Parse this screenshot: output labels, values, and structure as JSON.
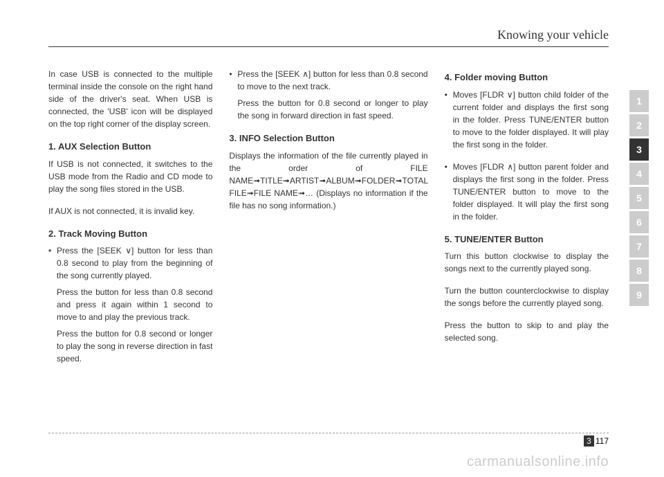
{
  "header": {
    "title": "Knowing your vehicle"
  },
  "col1": {
    "intro": "In case USB is connected to the multiple terminal inside the console on the right hand side of the driver's seat. When USB is connected, the 'USB' icon will be displayed on the top right corner of the display screen.",
    "h1": "1. AUX Selection Button",
    "p1a": "If USB is not connected, it switches to the USB mode from the Radio and CD mode to play the song files stored in the USB.",
    "p1b": "If AUX is not connected, it is invalid key.",
    "h2": "2. Track Moving Button",
    "b1a": "Press the [SEEK ∨] button for less than 0.8 second to play from the beginning of the song currently played.",
    "b1b": "Press the button for less than 0.8 second and press it again within 1 second to move to and play the previous track.",
    "b1c": "Press the button for 0.8 second or longer to play the song in reverse direction in fast speed."
  },
  "col2": {
    "b2a": "Press the [SEEK ∧] button for less than 0.8 second to move to the next track.",
    "b2b": "Press the button for 0.8 second or longer to play the song in forward direction in fast speed.",
    "h3": "3. INFO Selection Button",
    "p3": "Displays the information of the file currently played in the order of FILE NAME➟TITLE➟ARTIST➟ALBUM➟FOLDER➟TOTAL FILE➟FILE NAME➟…  (Displays no information if the file has no song information.)"
  },
  "col3": {
    "h4": "4. Folder moving Button",
    "b4a": "Moves [FLDR ∨] button child folder of the current folder and displays the first song in the folder. Press TUNE/ENTER button to move to the folder displayed. It will play the first song in the folder.",
    "b4b": "Moves [FLDR ∧] button parent folder and displays the first song in the folder. Press TUNE/ENTER button to move to the folder displayed. It will play the first song in the folder.",
    "h5": "5. TUNE/ENTER Button",
    "p5a": "Turn this button clockwise to display the songs next to the currently played song.",
    "p5b": "Turn the button counterclockwise to display the songs before the currently played song.",
    "p5c": "Press the button to skip to and play the selected song."
  },
  "tabs": {
    "items": [
      "1",
      "2",
      "3",
      "4",
      "5",
      "6",
      "7",
      "8",
      "9"
    ],
    "active_index": 2
  },
  "footer": {
    "section": "3",
    "page": "117"
  },
  "watermark": "carmanualsonline.info"
}
